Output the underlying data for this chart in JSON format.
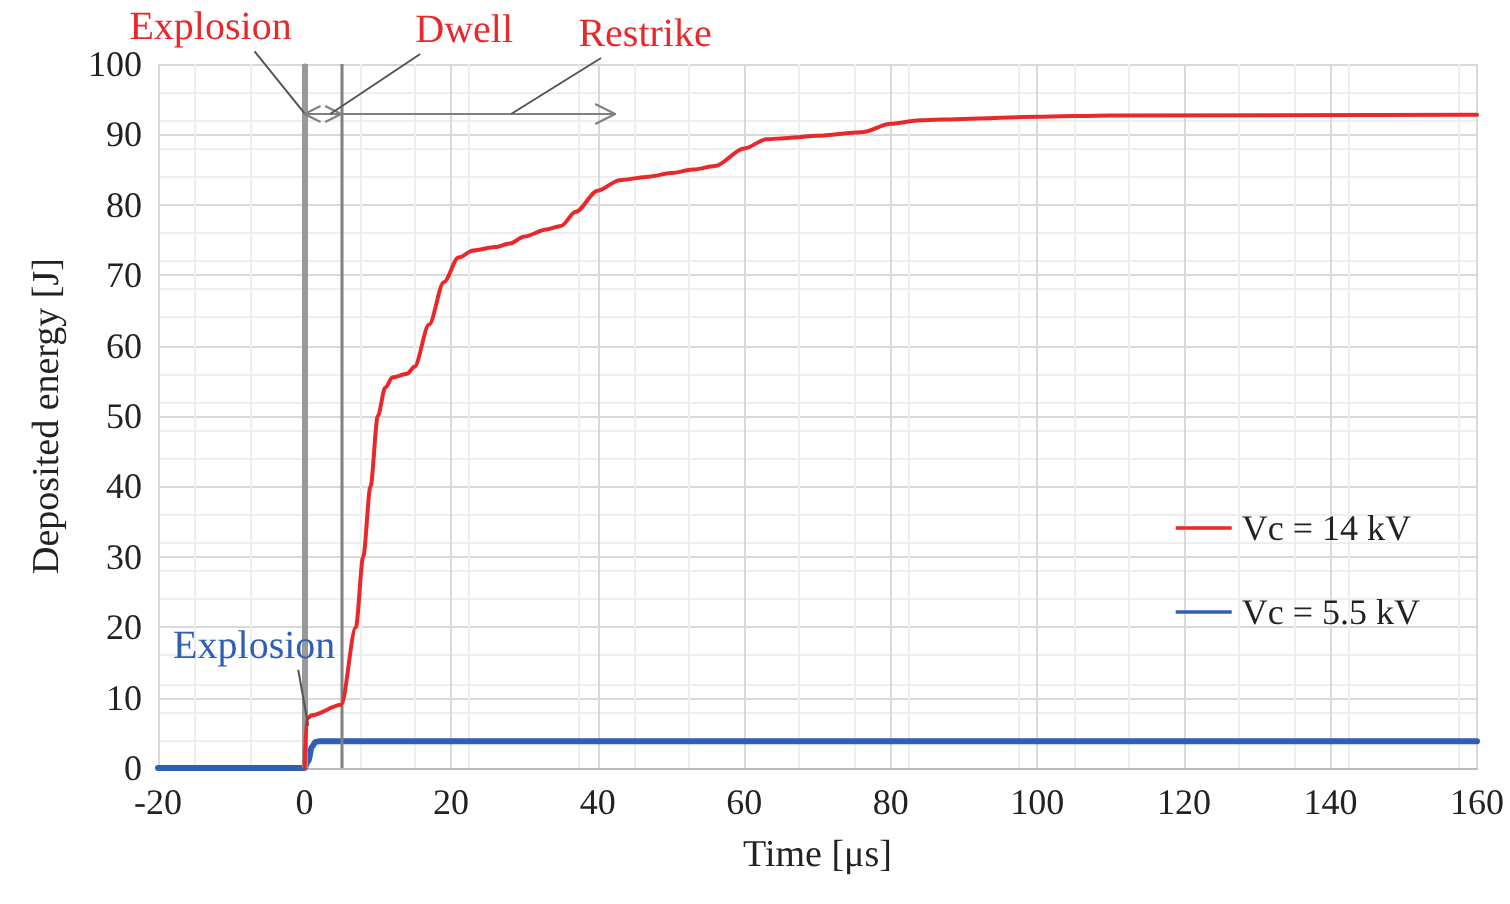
{
  "chart_data": {
    "type": "line",
    "xlabel": "Time [μs]",
    "ylabel": "Deposited energy [J]",
    "xlim": [
      -20,
      160
    ],
    "xticks": [
      -20,
      0,
      20,
      40,
      60,
      80,
      100,
      120,
      140,
      160
    ],
    "ylim": [
      0,
      100
    ],
    "yticks": [
      0,
      10,
      20,
      30,
      40,
      50,
      60,
      70,
      80,
      90,
      100
    ],
    "grid": true,
    "legend": "right",
    "marker": "none",
    "line_style": "solid",
    "series": [
      {
        "name": "Vc = 14 kV",
        "color": "#e8282b",
        "x": [
          0,
          0.3,
          1,
          5,
          7,
          8,
          9,
          10,
          11,
          12,
          14,
          15,
          17,
          19,
          21,
          23,
          26,
          28,
          30,
          33,
          35,
          37,
          40,
          43,
          47,
          50,
          53,
          56,
          60,
          63,
          66,
          70,
          76,
          80,
          84,
          90,
          100,
          110,
          160
        ],
        "values": [
          0,
          7,
          7.5,
          9,
          20,
          30,
          40,
          50,
          54,
          55.5,
          56,
          57,
          63,
          69,
          72.5,
          73.5,
          74,
          74.5,
          75.5,
          76.5,
          77,
          79,
          82,
          83.5,
          84,
          84.5,
          85,
          85.5,
          88,
          89.3,
          89.5,
          89.8,
          90.3,
          91.5,
          92,
          92.2,
          92.5,
          92.7,
          92.8
        ]
      },
      {
        "name": "Vc = 5.5 kV",
        "color": "#2e5fb5",
        "x": [
          -20,
          0,
          0.5,
          1,
          1.5,
          2,
          160
        ],
        "values": [
          0,
          0,
          1,
          3,
          3.7,
          3.8,
          3.8
        ]
      }
    ],
    "ref_lines": [
      {
        "axis": "x",
        "value": 0,
        "color": "#999999"
      },
      {
        "axis": "x",
        "value": 5,
        "color": "#808080"
      }
    ],
    "annotations": [
      {
        "text": "Explosion",
        "x": 0,
        "y": 93
      },
      "Dwell",
      "Restrike",
      {
        "text": "Explosion",
        "x": 0.5,
        "y": 6
      }
    ]
  }
}
